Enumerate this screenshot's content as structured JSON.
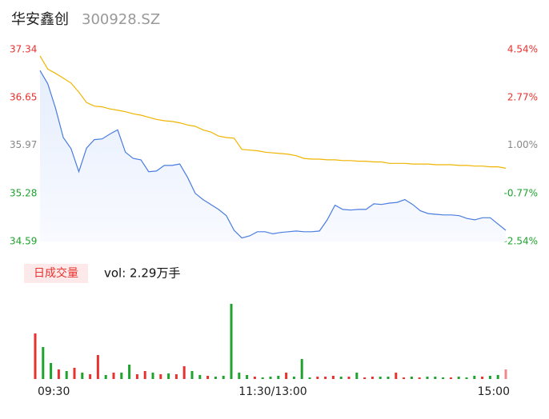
{
  "chart_data": [
    {
      "type": "line",
      "title": "华安鑫创",
      "subtitle": "300928.SZ",
      "ylim": [
        34.59,
        37.34
      ],
      "yticks": [
        37.34,
        36.65,
        35.97,
        35.28,
        34.59
      ],
      "ytick_colors": [
        "#e8322f",
        "#e8322f",
        "#888888",
        "#1fa32f",
        "#1fa32f"
      ],
      "y2ticks": [
        {
          "value": 37.34,
          "label": "4.54%"
        },
        {
          "value": 36.65,
          "label": "2.77%"
        },
        {
          "value": 35.97,
          "label": "1.00%"
        },
        {
          "value": 35.28,
          "label": "-0.77%"
        },
        {
          "value": 34.59,
          "label": "-2.54%"
        }
      ],
      "xlim": [
        0,
        60
      ],
      "xticks": [
        {
          "value": 0,
          "label": "09:30"
        },
        {
          "value": 30,
          "label": "11:30/13:00"
        },
        {
          "value": 60,
          "label": "15:00"
        }
      ],
      "series": [
        {
          "name": "price",
          "color": "#4a7de0",
          "values": [
            37.04,
            36.85,
            36.5,
            36.08,
            35.92,
            35.59,
            35.93,
            36.05,
            36.06,
            36.13,
            36.19,
            35.87,
            35.78,
            35.76,
            35.59,
            35.6,
            35.68,
            35.68,
            35.7,
            35.51,
            35.28,
            35.19,
            35.12,
            35.05,
            34.96,
            34.75,
            34.64,
            34.67,
            34.73,
            34.73,
            34.7,
            34.72,
            34.73,
            34.74,
            34.73,
            34.73,
            34.74,
            34.9,
            35.11,
            35.05,
            35.04,
            35.05,
            35.05,
            35.13,
            35.12,
            35.14,
            35.15,
            35.19,
            35.12,
            35.03,
            34.99,
            34.98,
            34.97,
            34.97,
            34.96,
            34.92,
            34.9,
            34.93,
            34.93,
            34.84,
            34.75
          ]
        },
        {
          "name": "average",
          "color": "#f0b400",
          "values": [
            37.25,
            37.06,
            37.0,
            36.93,
            36.86,
            36.73,
            36.58,
            36.53,
            36.52,
            36.49,
            36.47,
            36.45,
            36.42,
            36.4,
            36.37,
            36.34,
            36.32,
            36.31,
            36.29,
            36.26,
            36.24,
            36.19,
            36.16,
            36.1,
            36.08,
            36.07,
            35.91,
            35.9,
            35.89,
            35.87,
            35.86,
            35.85,
            35.84,
            35.82,
            35.78,
            35.77,
            35.77,
            35.76,
            35.76,
            35.75,
            35.75,
            35.74,
            35.74,
            35.73,
            35.73,
            35.71,
            35.71,
            35.71,
            35.7,
            35.7,
            35.7,
            35.69,
            35.69,
            35.69,
            35.68,
            35.68,
            35.67,
            35.67,
            35.66,
            35.66,
            35.64
          ]
        }
      ]
    },
    {
      "type": "bar",
      "legend": "日成交量",
      "label": "vol: 2.29万手",
      "ylim": [
        0,
        94
      ],
      "values": [
        57,
        40,
        20,
        12,
        10,
        14,
        8,
        6,
        30,
        5,
        8,
        8,
        18,
        6,
        10,
        8,
        6,
        7,
        6,
        16,
        10,
        5,
        4,
        3,
        4,
        94,
        8,
        5,
        3,
        2,
        3,
        4,
        8,
        3,
        25,
        2,
        3,
        3,
        4,
        3,
        3,
        8,
        2,
        3,
        3,
        3,
        8,
        2,
        3,
        2,
        3,
        3,
        2,
        2,
        3,
        2,
        4,
        3,
        4,
        5,
        12
      ],
      "colors": [
        "#e8322f",
        "#1fa32f",
        "#1fa32f",
        "#e8322f",
        "#1fa32f",
        "#e8322f",
        "#1fa32f",
        "#e8322f",
        "#e8322f",
        "#1fa32f",
        "#e8322f",
        "#1fa32f",
        "#1fa32f",
        "#e8322f",
        "#e8322f",
        "#1fa32f",
        "#e8322f",
        "#1fa32f",
        "#e8322f",
        "#e8322f",
        "#1fa32f",
        "#1fa32f",
        "#e8322f",
        "#1fa32f",
        "#1fa32f",
        "#1fa32f",
        "#1fa32f",
        "#1fa32f",
        "#e8322f",
        "#1fa32f",
        "#1fa32f",
        "#1fa32f",
        "#e8322f",
        "#1fa32f",
        "#1fa32f",
        "#1fa32f",
        "#e8322f",
        "#e8322f",
        "#e8322f",
        "#1fa32f",
        "#e8322f",
        "#1fa32f",
        "#e8322f",
        "#e8322f",
        "#1fa32f",
        "#1fa32f",
        "#e8322f",
        "#e8322f",
        "#1fa32f",
        "#e8322f",
        "#1fa32f",
        "#1fa32f",
        "#1fa32f",
        "#e8322f",
        "#1fa32f",
        "#1fa32f",
        "#1fa32f",
        "#e8322f",
        "#1fa32f",
        "#1fa32f",
        "#f08a8a"
      ]
    }
  ]
}
